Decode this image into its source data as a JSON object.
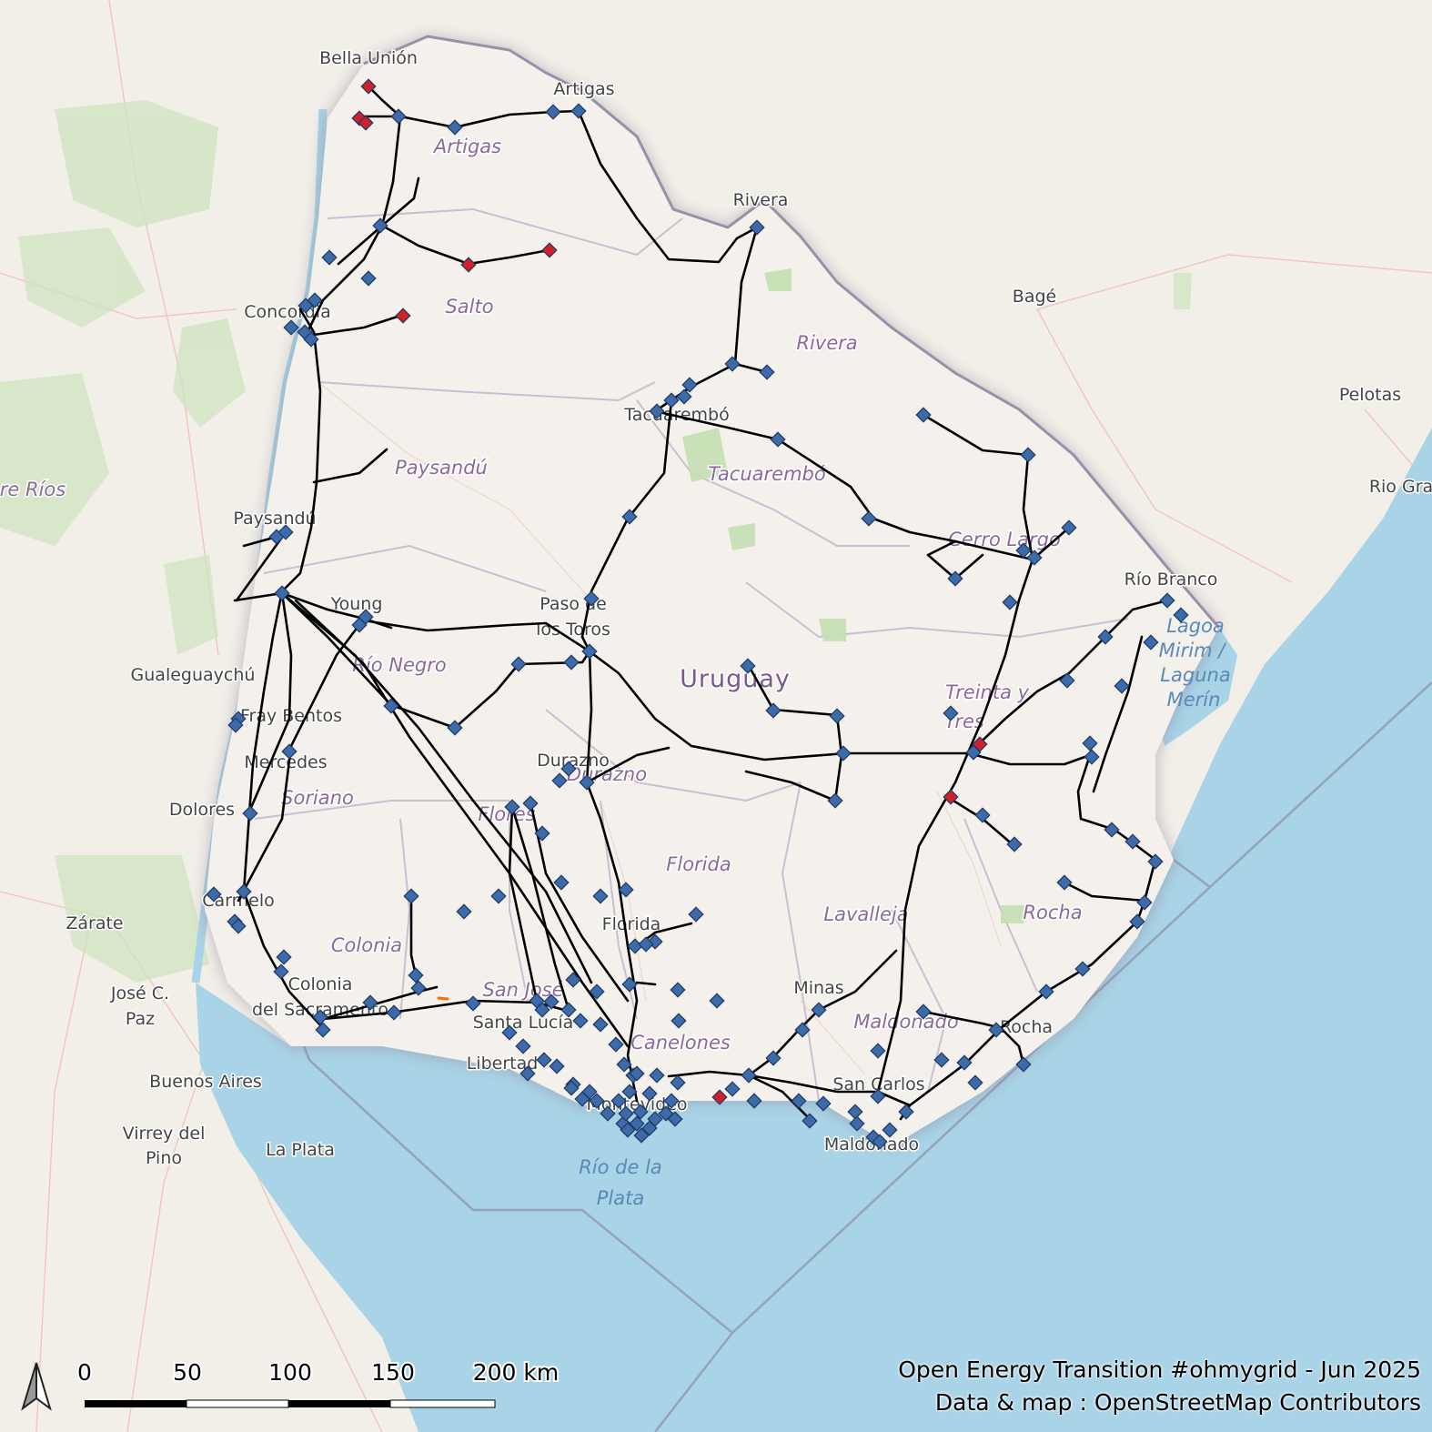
{
  "map": {
    "country_label": "Uruguay",
    "colors": {
      "land_outside": "#f2efe9",
      "land_country": "#f4f1ec",
      "water": "#a9d3e6",
      "power_line": "#000000",
      "substation": "#3d6aa8",
      "substation_alert": "#d0202a",
      "border": "#9a8fa6"
    },
    "cities": [
      "Bella Unión",
      "Artigas",
      "Rivera",
      "Bagé",
      "Pelotas",
      "Rio Gra",
      "Concordia",
      "Paysandú",
      "Tacuarembó",
      "Young",
      "Paso de",
      "los Toros",
      "Río Branco",
      "Gualeguaychú",
      "Fray Bentos",
      "Mercedes",
      "Dolores",
      "Durazno",
      "Carmelo",
      "Zárate",
      "Colonia",
      "del Sacramento",
      "José C.",
      "Paz",
      "Buenos Aires",
      "Virrey del",
      "Pino",
      "La Plata",
      "Santa Lucía",
      "Libertad",
      "Montevideo",
      "Florida",
      "Minas",
      "San Carlos",
      "Maldonado",
      "Rocha"
    ],
    "departments": [
      "Artigas",
      "Salto",
      "Rivera",
      "Paysandú",
      "Tacuarembó",
      "Cerro Largo",
      "Río Negro",
      "Treinta y",
      "Tres",
      "Soriano",
      "Flores",
      "Florida",
      "Durazno",
      "Lavalleja",
      "Rocha",
      "Colonia",
      "San José",
      "Canelones",
      "Maldonado",
      "re Ríos"
    ],
    "water_labels": [
      "Lagoa",
      "Mirim /",
      "Laguna",
      "Merín",
      "Río de la",
      "Plata"
    ]
  },
  "scale_bar": {
    "ticks": [
      "0",
      "50",
      "100",
      "150",
      "200 km"
    ]
  },
  "north_arrow": {
    "icon": "north-arrow-icon"
  },
  "credits": {
    "line1": "Open Energy Transition #ohmygrid - Jun 2025",
    "line2": "Data & map : OpenStreetMap Contributors"
  }
}
